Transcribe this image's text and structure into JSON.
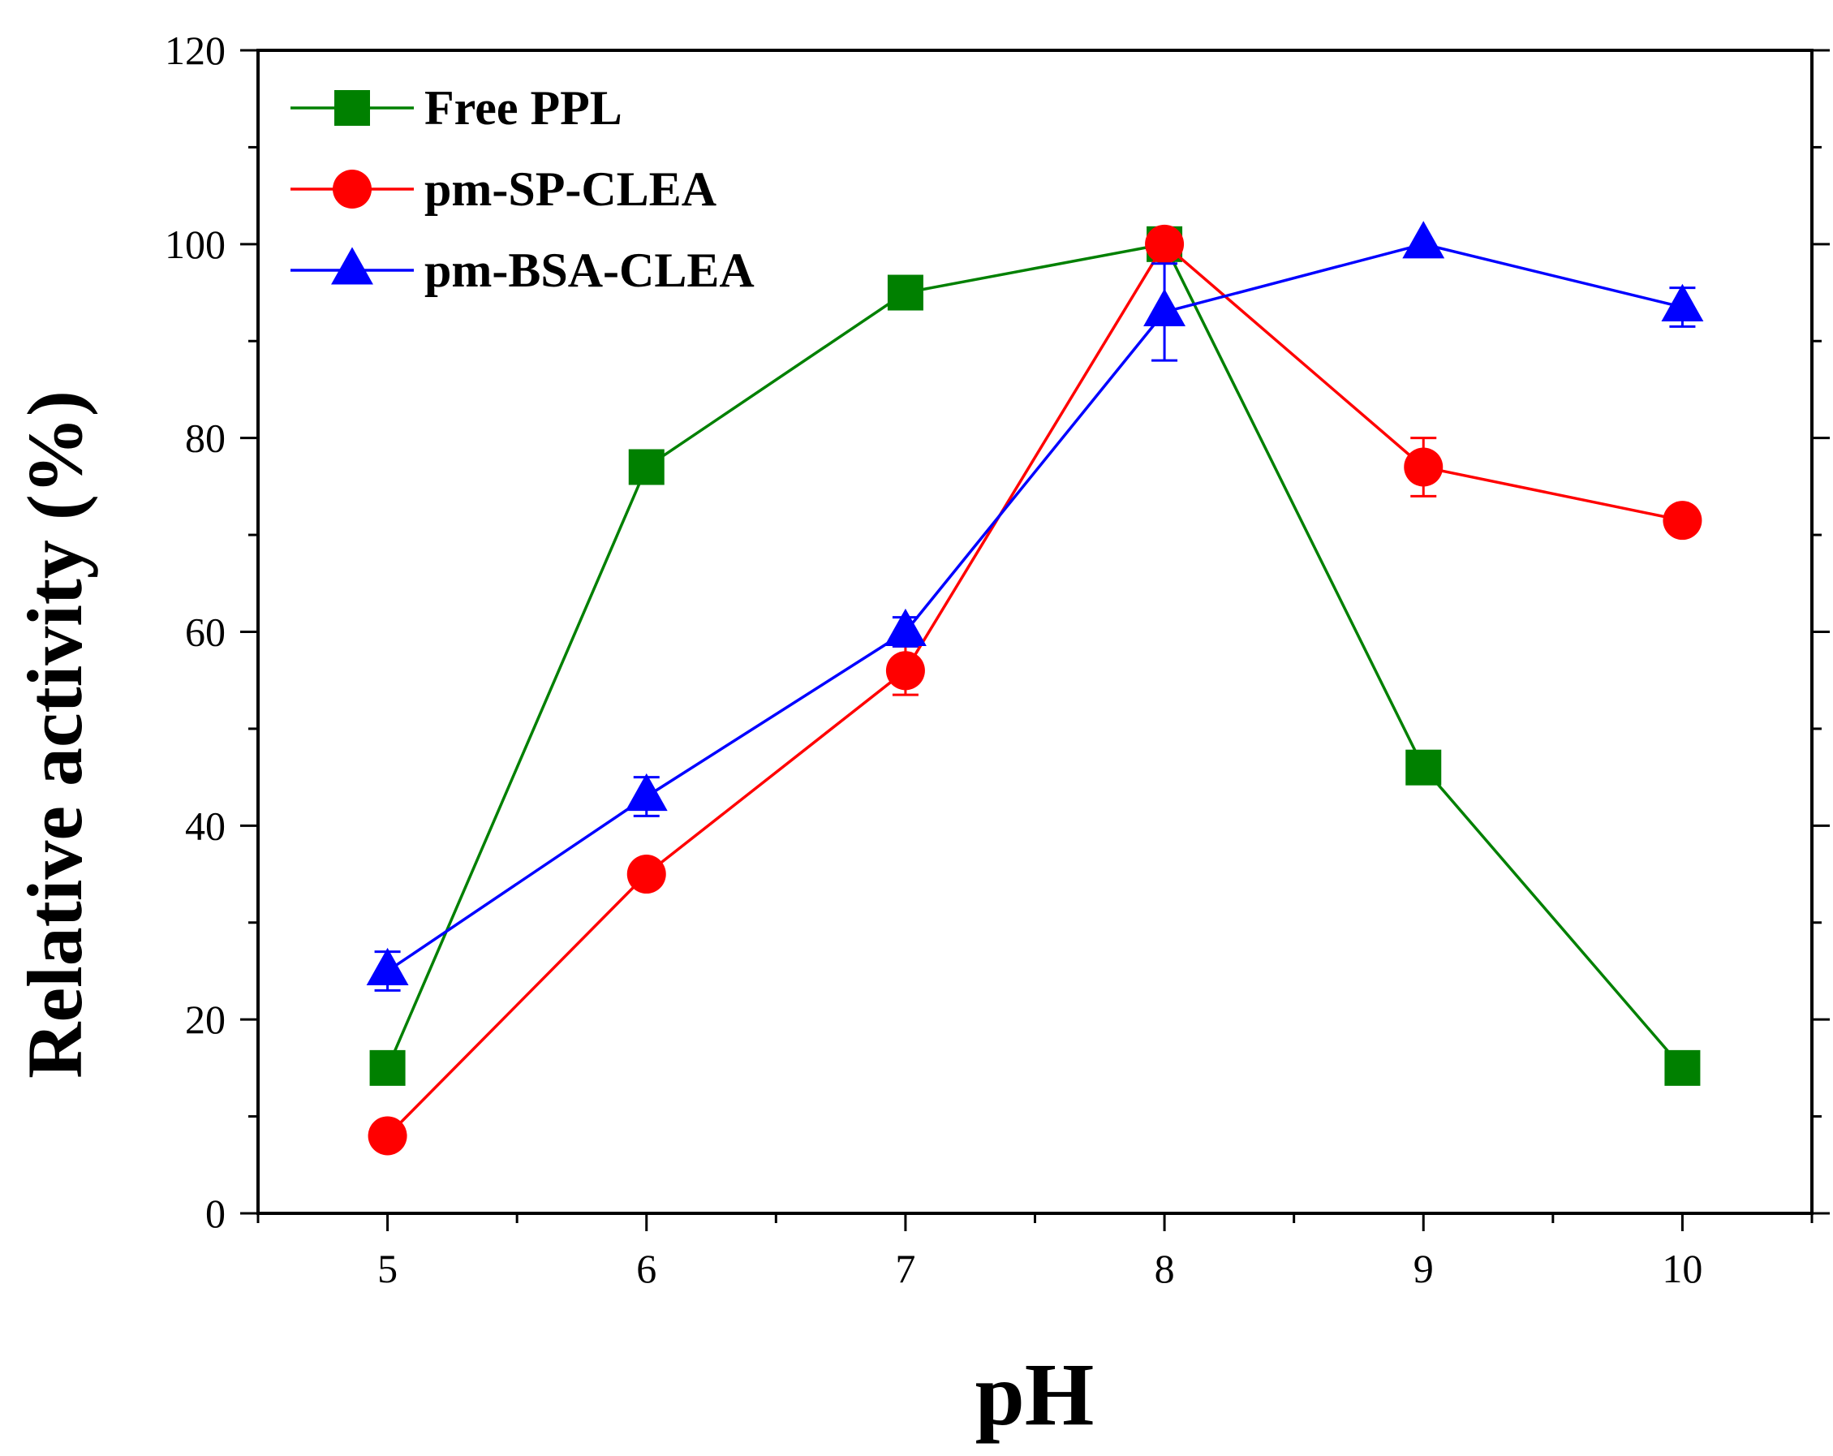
{
  "chart_data": {
    "type": "line",
    "title": "",
    "xlabel": "pH",
    "ylabel": "Relative activity (%)",
    "x": [
      5,
      6,
      7,
      8,
      9,
      10
    ],
    "xlim": [
      4.5,
      10.5
    ],
    "ylim": [
      0,
      120
    ],
    "xticks": [
      "5",
      "6",
      "7",
      "8",
      "9",
      "10"
    ],
    "yticks": [
      "0",
      "20",
      "40",
      "60",
      "80",
      "100",
      "120"
    ],
    "legend_position": "top-left",
    "grid": false,
    "series": [
      {
        "name": "Free PPL",
        "color": "#008000",
        "marker": "square",
        "values": [
          15,
          77,
          95,
          100,
          46,
          15
        ],
        "errors": [
          0,
          0,
          0,
          0,
          0,
          0
        ]
      },
      {
        "name": "pm-SP-CLEA",
        "color": "#ff0000",
        "marker": "circle",
        "values": [
          8,
          35,
          56,
          100,
          77,
          71.5
        ],
        "errors": [
          0,
          0,
          2.5,
          0,
          3,
          0
        ]
      },
      {
        "name": "pm-BSA-CLEA",
        "color": "#0000ff",
        "marker": "triangle",
        "values": [
          25,
          43,
          60,
          93,
          100,
          93.5
        ],
        "errors": [
          2,
          2,
          1.5,
          5,
          0,
          2
        ]
      }
    ]
  }
}
